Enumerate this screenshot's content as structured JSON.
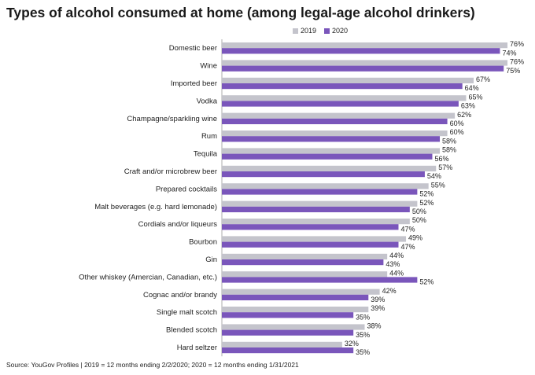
{
  "title": "Types of alcohol consumed at home (among legal-age alcohol drinkers)",
  "source": "Source: YouGov Profiles | 2019 = 12 months ending 2/2/2020; 2020 = 12 months ending 1/31/2021",
  "colors": {
    "s2019": "#c4c4cc",
    "s2020": "#7a56bb"
  },
  "chart_data": {
    "type": "bar",
    "orientation": "horizontal",
    "title": "Types of alcohol consumed at home (among legal-age alcohol drinkers)",
    "categories": [
      "Domestic beer",
      "Wine",
      "Imported beer",
      "Vodka",
      "Champagne/sparkling wine",
      "Rum",
      "Tequila",
      "Craft and/or microbrew beer",
      "Prepared cocktails",
      "Malt beverages (e.g. hard lemonade)",
      "Cordials and/or liqueurs",
      "Bourbon",
      "Gin",
      "Other whiskey (Amercian, Canadian, etc.)",
      "Cognac and/or brandy",
      "Single malt scotch",
      "Blended scotch",
      "Hard seltzer"
    ],
    "series": [
      {
        "name": "2019",
        "values": [
          76,
          76,
          67,
          65,
          62,
          60,
          58,
          57,
          55,
          52,
          50,
          49,
          44,
          44,
          42,
          39,
          38,
          32
        ],
        "labels": [
          "76%",
          "76%",
          "67%",
          "65%",
          "62%",
          "60%",
          "58%",
          "57%",
          "55%",
          "52%",
          "50%",
          "49%",
          "44%",
          "44%",
          "42%",
          "39%",
          "38%",
          "32%"
        ]
      },
      {
        "name": "2020",
        "values": [
          74,
          75,
          64,
          63,
          60,
          58,
          56,
          54,
          52,
          50,
          47,
          47,
          43,
          52,
          39,
          35,
          35,
          35
        ],
        "labels": [
          "74%",
          "75%",
          "64%",
          "63%",
          "60%",
          "58%",
          "56%",
          "54%",
          "52%",
          "50%",
          "47%",
          "47%",
          "43%",
          "52%",
          "39%",
          "35%",
          "35%",
          "35%"
        ]
      }
    ],
    "xlim": [
      0,
      76
    ],
    "legend": "top",
    "grid": false
  }
}
